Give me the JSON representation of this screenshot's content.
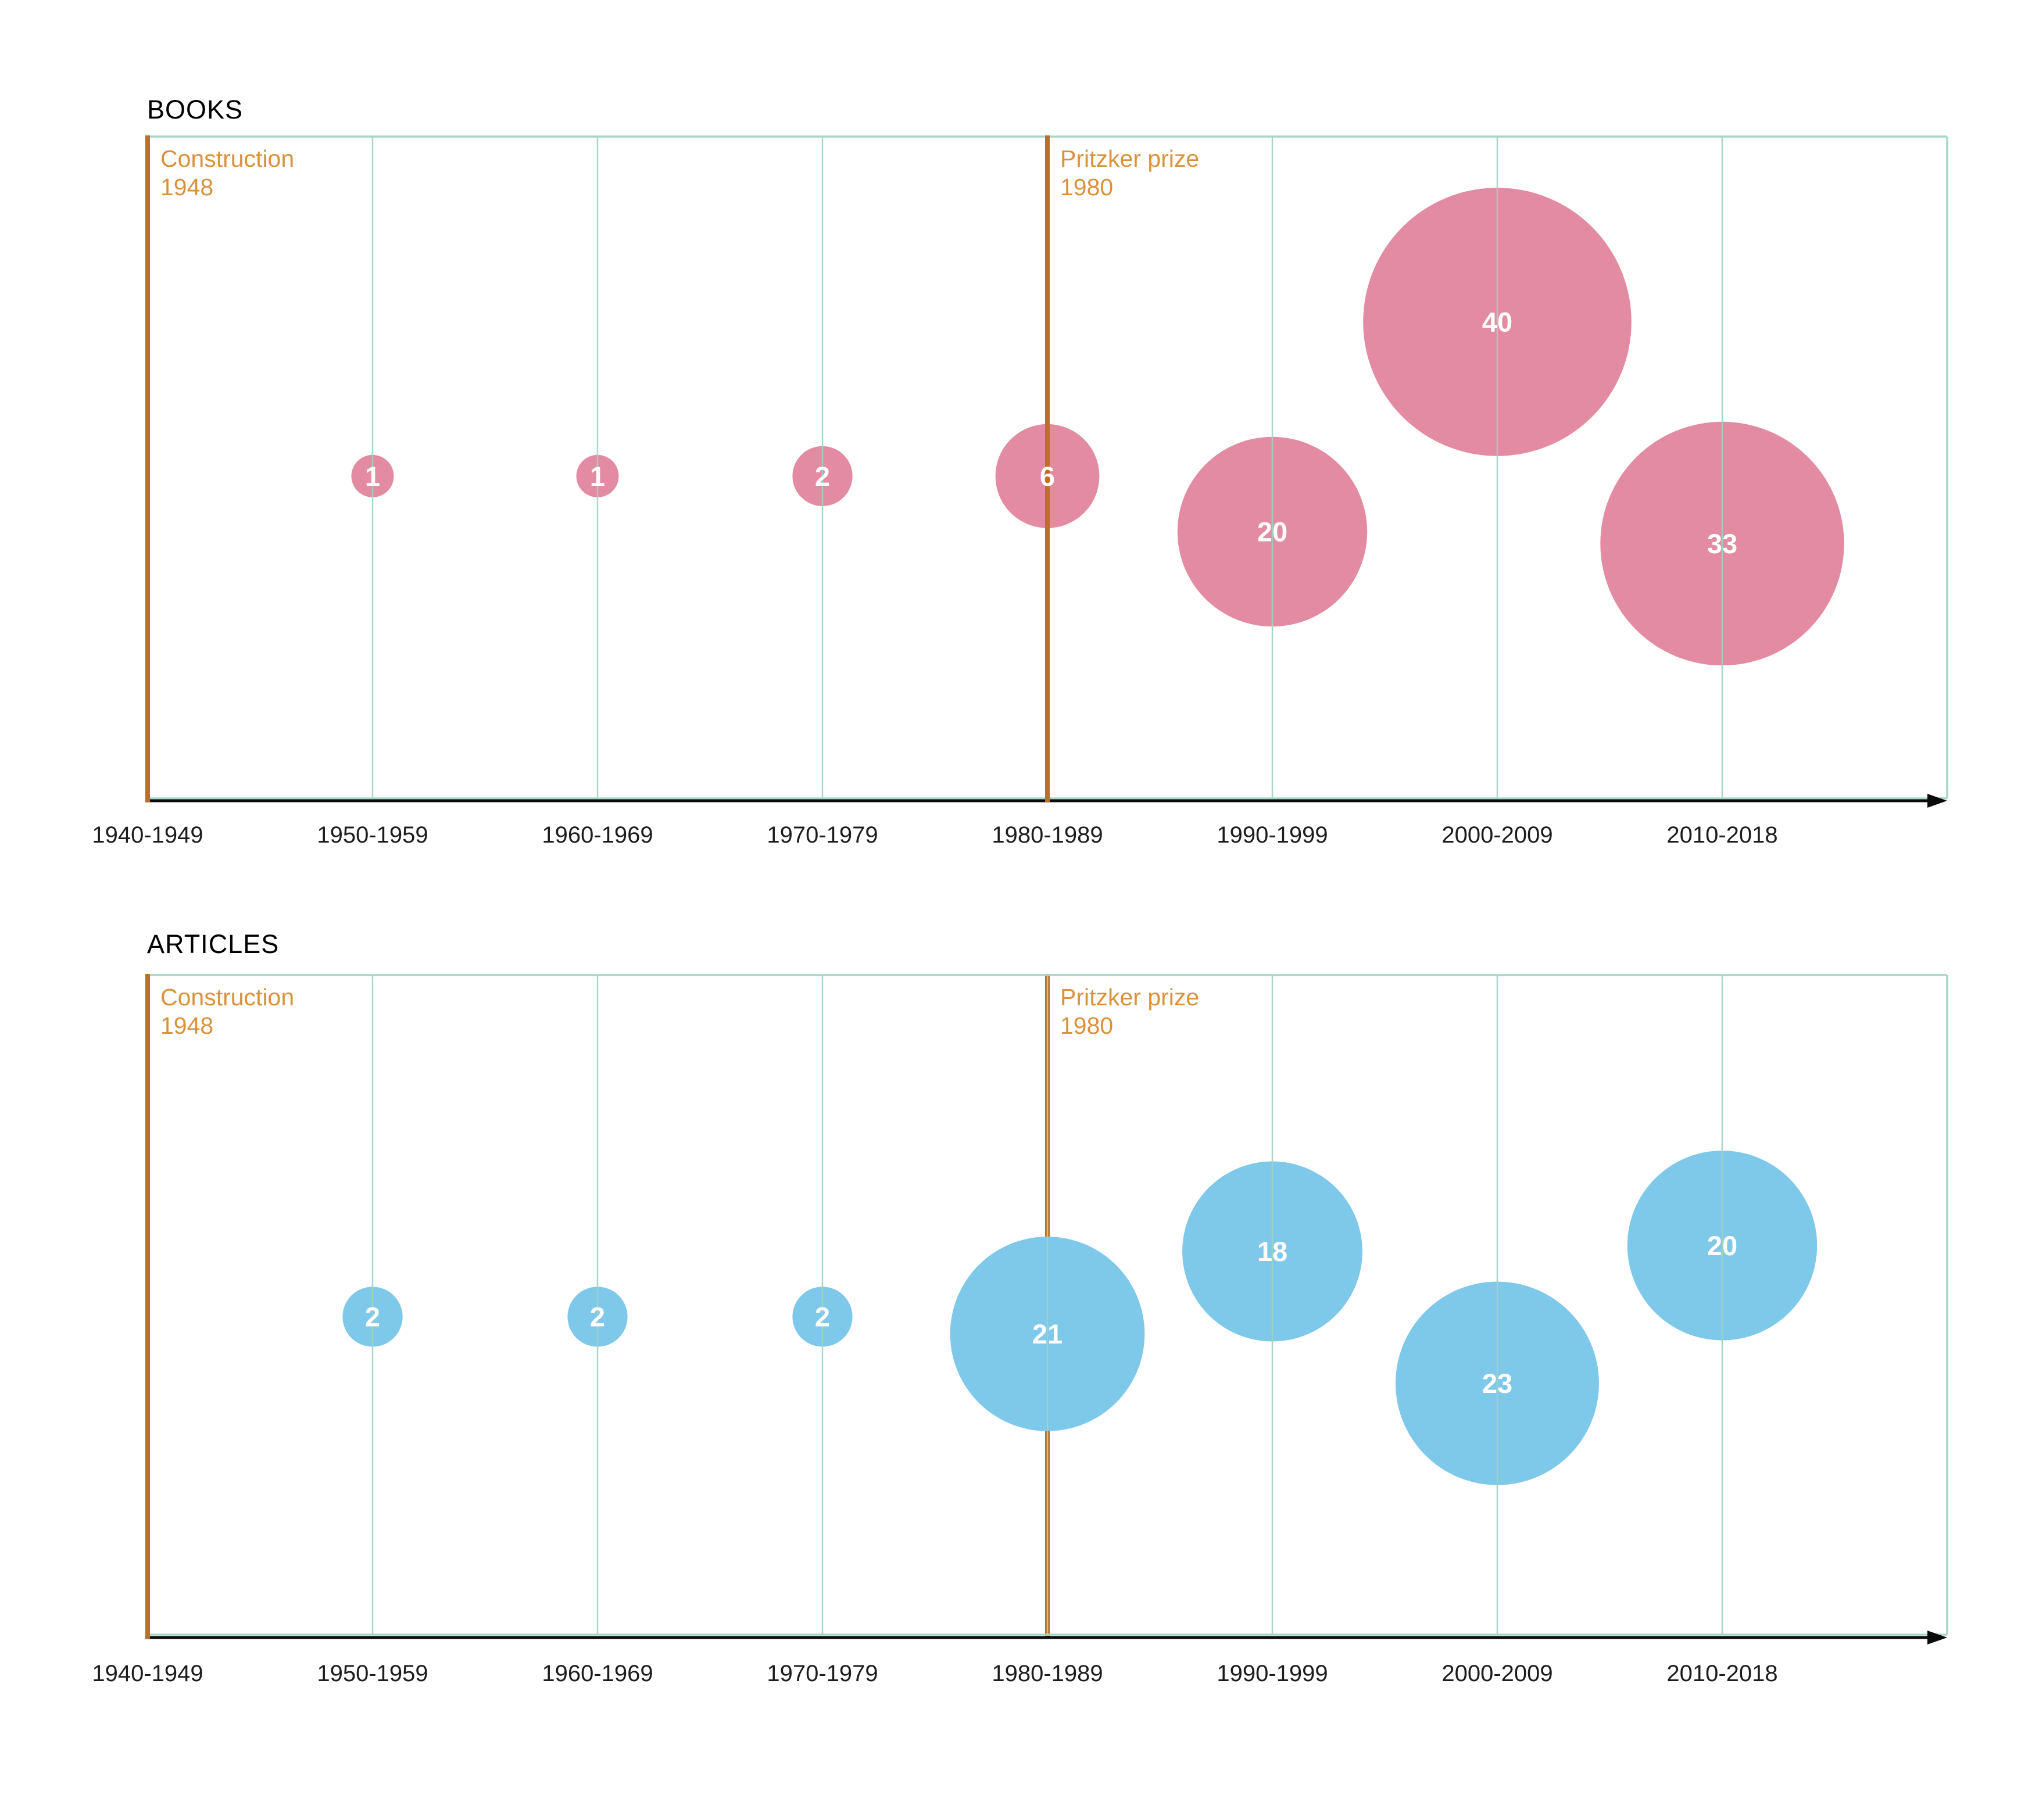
{
  "chart_data": {
    "type": "bubble",
    "description": "Two decade-binned bubble timelines counting publications",
    "categories": [
      "1940-1949",
      "1950-1959",
      "1960-1969",
      "1970-1979",
      "1980-1989",
      "1990-1999",
      "2000-2009",
      "2010-2018"
    ],
    "series": [
      {
        "name": "BOOKS",
        "color": "#e28ba2",
        "values": [
          null,
          1,
          1,
          2,
          6,
          20,
          40,
          33
        ],
        "y_frac": [
          null,
          0.513,
          0.513,
          0.513,
          0.513,
          0.597,
          0.28,
          0.615
        ]
      },
      {
        "name": "ARTICLES",
        "color": "#7ec8ea",
        "values": [
          null,
          2,
          2,
          2,
          21,
          18,
          23,
          20
        ],
        "y_frac": [
          null,
          0.518,
          0.518,
          0.518,
          0.544,
          0.419,
          0.619,
          0.41
        ]
      }
    ],
    "annotations": [
      {
        "label": "Construction",
        "year": "1948",
        "category_index": 0
      },
      {
        "label": "Pritzker prize",
        "year": "1980",
        "category_index": 4
      }
    ],
    "grid": "vertical",
    "x_axis": {
      "arrow": true
    },
    "legend": "none",
    "bubble_label_color": "#ffffff"
  },
  "style": {
    "grid_color": "#9ed3c1",
    "frame_color": "#a6d6c6",
    "event_line_color": "#c06f22",
    "event_text_color": "#d9923c",
    "axis_color": "#0b0b0b",
    "tick_text_color": "#1c1c1c"
  }
}
